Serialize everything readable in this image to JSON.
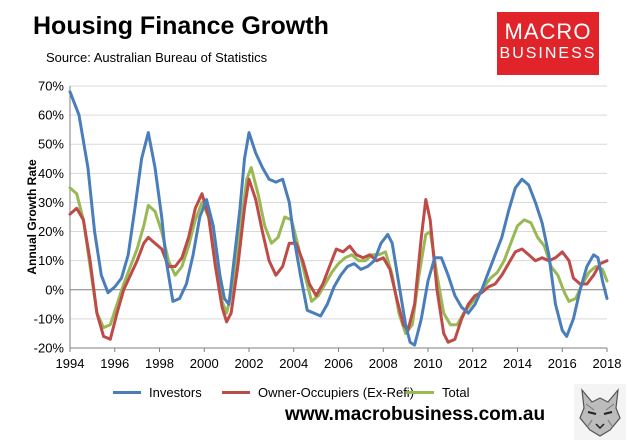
{
  "header": {
    "title": "Housing Finance Growth",
    "source": "Source: Australian Bureau of Statistics"
  },
  "logo": {
    "line1": "MACRO",
    "line2": "BUSINESS",
    "color": "#e0242a"
  },
  "footer": {
    "website": "www.macrobusiness.com.au",
    "wolf_icon": "wolf-icon"
  },
  "chart_data": {
    "type": "line",
    "ylabel": "Annual Growth Rate",
    "xlabel": "",
    "xlim": [
      1994,
      2018
    ],
    "ylim": [
      -20,
      70
    ],
    "x_ticks": [
      "1994",
      "1996",
      "1998",
      "2000",
      "2002",
      "2004",
      "2006",
      "2008",
      "2010",
      "2012",
      "2014",
      "2016",
      "2018"
    ],
    "y_ticks": [
      "70%",
      "60%",
      "50%",
      "40%",
      "30%",
      "20%",
      "10%",
      "0%",
      "-10%",
      "-20%"
    ],
    "grid": "horizontal",
    "legend_position": "bottom",
    "series": [
      {
        "name": "Investors",
        "color": "#4a7ebb",
        "points": [
          [
            1994.0,
            68
          ],
          [
            1994.4,
            60
          ],
          [
            1994.8,
            42
          ],
          [
            1995.1,
            20
          ],
          [
            1995.4,
            5
          ],
          [
            1995.7,
            -1
          ],
          [
            1996.0,
            1
          ],
          [
            1996.3,
            4
          ],
          [
            1996.6,
            12
          ],
          [
            1996.9,
            28
          ],
          [
            1997.2,
            45
          ],
          [
            1997.5,
            54
          ],
          [
            1997.8,
            42
          ],
          [
            1998.1,
            25
          ],
          [
            1998.3,
            10
          ],
          [
            1998.6,
            -4
          ],
          [
            1998.9,
            -3
          ],
          [
            1999.2,
            2
          ],
          [
            1999.5,
            12
          ],
          [
            1999.8,
            25
          ],
          [
            2000.1,
            31
          ],
          [
            2000.4,
            22
          ],
          [
            2000.7,
            5
          ],
          [
            2000.9,
            -3
          ],
          [
            2001.1,
            -5
          ],
          [
            2001.3,
            8
          ],
          [
            2001.6,
            28
          ],
          [
            2001.8,
            45
          ],
          [
            2002.0,
            54
          ],
          [
            2002.3,
            47
          ],
          [
            2002.6,
            42
          ],
          [
            2002.9,
            38
          ],
          [
            2003.2,
            37
          ],
          [
            2003.5,
            38
          ],
          [
            2003.8,
            30
          ],
          [
            2004.0,
            18
          ],
          [
            2004.3,
            5
          ],
          [
            2004.6,
            -7
          ],
          [
            2004.9,
            -8
          ],
          [
            2005.2,
            -9
          ],
          [
            2005.5,
            -5
          ],
          [
            2005.8,
            1
          ],
          [
            2006.1,
            5
          ],
          [
            2006.4,
            8
          ],
          [
            2006.7,
            9
          ],
          [
            2007.0,
            7
          ],
          [
            2007.3,
            8
          ],
          [
            2007.6,
            10
          ],
          [
            2007.9,
            16
          ],
          [
            2008.2,
            19
          ],
          [
            2008.4,
            16
          ],
          [
            2008.7,
            2
          ],
          [
            2009.0,
            -12
          ],
          [
            2009.2,
            -18
          ],
          [
            2009.4,
            -19
          ],
          [
            2009.7,
            -10
          ],
          [
            2010.0,
            3
          ],
          [
            2010.3,
            11
          ],
          [
            2010.6,
            11
          ],
          [
            2010.9,
            5
          ],
          [
            2011.2,
            -2
          ],
          [
            2011.5,
            -6
          ],
          [
            2011.8,
            -8
          ],
          [
            2012.1,
            -5
          ],
          [
            2012.4,
            0
          ],
          [
            2012.7,
            6
          ],
          [
            2013.0,
            12
          ],
          [
            2013.3,
            18
          ],
          [
            2013.6,
            27
          ],
          [
            2013.9,
            35
          ],
          [
            2014.2,
            38
          ],
          [
            2014.5,
            36
          ],
          [
            2014.8,
            30
          ],
          [
            2015.1,
            23
          ],
          [
            2015.4,
            12
          ],
          [
            2015.7,
            -5
          ],
          [
            2016.0,
            -14
          ],
          [
            2016.2,
            -16
          ],
          [
            2016.5,
            -10
          ],
          [
            2016.8,
            0
          ],
          [
            2017.1,
            8
          ],
          [
            2017.4,
            12
          ],
          [
            2017.6,
            11
          ],
          [
            2017.8,
            3
          ],
          [
            2018.0,
            -3
          ]
        ]
      },
      {
        "name": "Owner-Occupiers (Ex-Refi)",
        "color": "#be4b48",
        "points": [
          [
            1994.0,
            26
          ],
          [
            1994.3,
            28
          ],
          [
            1994.6,
            24
          ],
          [
            1994.9,
            10
          ],
          [
            1995.2,
            -8
          ],
          [
            1995.5,
            -16
          ],
          [
            1995.8,
            -17
          ],
          [
            1996.1,
            -8
          ],
          [
            1996.4,
            0
          ],
          [
            1996.7,
            5
          ],
          [
            1997.0,
            10
          ],
          [
            1997.3,
            16
          ],
          [
            1997.5,
            18
          ],
          [
            1997.8,
            16
          ],
          [
            1998.1,
            14
          ],
          [
            1998.4,
            8
          ],
          [
            1998.7,
            8
          ],
          [
            1999.0,
            11
          ],
          [
            1999.3,
            18
          ],
          [
            1999.6,
            28
          ],
          [
            1999.9,
            33
          ],
          [
            2000.2,
            25
          ],
          [
            2000.5,
            8
          ],
          [
            2000.8,
            -6
          ],
          [
            2001.0,
            -11
          ],
          [
            2001.2,
            -8
          ],
          [
            2001.5,
            8
          ],
          [
            2001.8,
            28
          ],
          [
            2002.0,
            38
          ],
          [
            2002.3,
            31
          ],
          [
            2002.6,
            20
          ],
          [
            2002.9,
            10
          ],
          [
            2003.2,
            5
          ],
          [
            2003.5,
            8
          ],
          [
            2003.8,
            16
          ],
          [
            2004.1,
            16
          ],
          [
            2004.4,
            10
          ],
          [
            2004.7,
            2
          ],
          [
            2005.0,
            -2
          ],
          [
            2005.3,
            2
          ],
          [
            2005.6,
            8
          ],
          [
            2005.9,
            14
          ],
          [
            2006.2,
            13
          ],
          [
            2006.5,
            15
          ],
          [
            2006.8,
            12
          ],
          [
            2007.1,
            11
          ],
          [
            2007.4,
            12
          ],
          [
            2007.7,
            10
          ],
          [
            2008.0,
            11
          ],
          [
            2008.3,
            7
          ],
          [
            2008.6,
            -3
          ],
          [
            2008.9,
            -12
          ],
          [
            2009.1,
            -14
          ],
          [
            2009.4,
            -5
          ],
          [
            2009.7,
            18
          ],
          [
            2009.9,
            31
          ],
          [
            2010.1,
            24
          ],
          [
            2010.4,
            0
          ],
          [
            2010.7,
            -15
          ],
          [
            2010.9,
            -18
          ],
          [
            2011.2,
            -17
          ],
          [
            2011.5,
            -10
          ],
          [
            2011.8,
            -5
          ],
          [
            2012.1,
            -2
          ],
          [
            2012.4,
            -1
          ],
          [
            2012.7,
            1
          ],
          [
            2013.0,
            2
          ],
          [
            2013.3,
            5
          ],
          [
            2013.6,
            9
          ],
          [
            2013.9,
            13
          ],
          [
            2014.2,
            14
          ],
          [
            2014.5,
            12
          ],
          [
            2014.8,
            10
          ],
          [
            2015.1,
            11
          ],
          [
            2015.4,
            10
          ],
          [
            2015.7,
            11
          ],
          [
            2016.0,
            13
          ],
          [
            2016.3,
            10
          ],
          [
            2016.5,
            4
          ],
          [
            2016.8,
            2
          ],
          [
            2017.1,
            2
          ],
          [
            2017.4,
            5
          ],
          [
            2017.7,
            9
          ],
          [
            2018.0,
            10
          ]
        ]
      },
      {
        "name": "Total",
        "color": "#98b954",
        "points": [
          [
            1994.0,
            35
          ],
          [
            1994.3,
            33
          ],
          [
            1994.6,
            24
          ],
          [
            1994.9,
            8
          ],
          [
            1995.2,
            -8
          ],
          [
            1995.5,
            -13
          ],
          [
            1995.8,
            -12
          ],
          [
            1996.1,
            -5
          ],
          [
            1996.4,
            2
          ],
          [
            1996.7,
            8
          ],
          [
            1997.0,
            14
          ],
          [
            1997.3,
            22
          ],
          [
            1997.5,
            29
          ],
          [
            1997.8,
            27
          ],
          [
            1998.1,
            20
          ],
          [
            1998.4,
            10
          ],
          [
            1998.7,
            5
          ],
          [
            1999.0,
            8
          ],
          [
            1999.3,
            15
          ],
          [
            1999.6,
            24
          ],
          [
            1999.9,
            30
          ],
          [
            2000.2,
            25
          ],
          [
            2000.5,
            10
          ],
          [
            2000.8,
            -4
          ],
          [
            2001.0,
            -8
          ],
          [
            2001.3,
            2
          ],
          [
            2001.6,
            20
          ],
          [
            2001.9,
            38
          ],
          [
            2002.1,
            42
          ],
          [
            2002.4,
            33
          ],
          [
            2002.7,
            22
          ],
          [
            2003.0,
            16
          ],
          [
            2003.3,
            18
          ],
          [
            2003.6,
            25
          ],
          [
            2003.9,
            24
          ],
          [
            2004.2,
            15
          ],
          [
            2004.5,
            5
          ],
          [
            2004.8,
            -4
          ],
          [
            2005.1,
            -2
          ],
          [
            2005.4,
            2
          ],
          [
            2005.7,
            6
          ],
          [
            2006.0,
            9
          ],
          [
            2006.3,
            11
          ],
          [
            2006.6,
            12
          ],
          [
            2006.9,
            10
          ],
          [
            2007.2,
            10
          ],
          [
            2007.5,
            12
          ],
          [
            2007.8,
            12
          ],
          [
            2008.1,
            13
          ],
          [
            2008.4,
            5
          ],
          [
            2008.7,
            -8
          ],
          [
            2009.0,
            -15
          ],
          [
            2009.3,
            -12
          ],
          [
            2009.6,
            5
          ],
          [
            2009.9,
            19
          ],
          [
            2010.1,
            20
          ],
          [
            2010.4,
            5
          ],
          [
            2010.7,
            -8
          ],
          [
            2011.0,
            -12
          ],
          [
            2011.3,
            -12
          ],
          [
            2011.6,
            -8
          ],
          [
            2011.9,
            -5
          ],
          [
            2012.2,
            -2
          ],
          [
            2012.5,
            1
          ],
          [
            2012.8,
            4
          ],
          [
            2013.1,
            6
          ],
          [
            2013.4,
            10
          ],
          [
            2013.7,
            16
          ],
          [
            2014.0,
            22
          ],
          [
            2014.3,
            24
          ],
          [
            2014.6,
            23
          ],
          [
            2014.9,
            18
          ],
          [
            2015.2,
            15
          ],
          [
            2015.5,
            8
          ],
          [
            2015.8,
            5
          ],
          [
            2016.1,
            -1
          ],
          [
            2016.3,
            -4
          ],
          [
            2016.6,
            -3
          ],
          [
            2016.9,
            2
          ],
          [
            2017.2,
            6
          ],
          [
            2017.5,
            8
          ],
          [
            2017.8,
            7
          ],
          [
            2018.0,
            3
          ]
        ]
      }
    ]
  }
}
